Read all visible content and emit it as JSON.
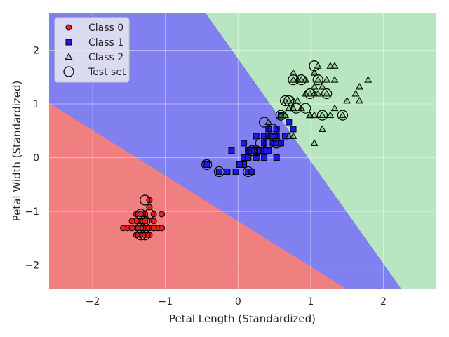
{
  "chart_data": {
    "type": "scatter",
    "title": "",
    "xlabel": "Petal Length (Standardized)",
    "ylabel": "Petal Width (Standardized)",
    "xlim": [
      -2.6,
      2.72
    ],
    "ylim": [
      -2.45,
      2.7
    ],
    "xticks": [
      -2,
      -1,
      0,
      1,
      2
    ],
    "yticks": [
      -2,
      -1,
      0,
      1,
      2
    ],
    "grid": true,
    "legend_position": "top-left",
    "decision_regions": {
      "class0_color": "#f08080",
      "class1_color": "#8080f0",
      "class2_color": "#b8e6c0",
      "boundary_0_1": [
        [
          -2.6,
          1.02
        ],
        [
          1.5,
          -2.45
        ]
      ],
      "boundary_1_2": [
        [
          -0.45,
          2.7
        ],
        [
          2.25,
          -2.45
        ]
      ]
    },
    "series": [
      {
        "name": "Class 0",
        "marker": "circle",
        "color": "#ee1c1c",
        "points": [
          [
            -1.34,
            -1.31
          ],
          [
            -1.28,
            -1.31
          ],
          [
            -1.4,
            -1.31
          ],
          [
            -1.22,
            -1.31
          ],
          [
            -1.34,
            -1.18
          ],
          [
            -1.16,
            -1.18
          ],
          [
            -1.4,
            -1.18
          ],
          [
            -1.28,
            -1.05
          ],
          [
            -1.34,
            -1.44
          ],
          [
            -1.52,
            -1.31
          ],
          [
            -1.46,
            -1.31
          ],
          [
            -1.16,
            -1.05
          ],
          [
            -1.05,
            -1.05
          ],
          [
            -1.22,
            -0.92
          ],
          [
            -1.28,
            -1.44
          ],
          [
            -1.22,
            -1.44
          ],
          [
            -1.16,
            -1.31
          ],
          [
            -1.1,
            -1.31
          ],
          [
            -1.4,
            -1.05
          ],
          [
            -1.46,
            -1.18
          ],
          [
            -1.58,
            -1.31
          ],
          [
            -1.34,
            -1.05
          ],
          [
            -1.05,
            -1.31
          ],
          [
            -1.22,
            -0.79
          ],
          [
            -1.4,
            -1.44
          ],
          [
            -1.28,
            -1.18
          ],
          [
            -1.16,
            -1.31
          ],
          [
            -1.34,
            -1.31
          ]
        ]
      },
      {
        "name": "Class 1",
        "marker": "square",
        "color": "#1a1aee",
        "points": [
          [
            0.42,
            0.4
          ],
          [
            0.36,
            0.4
          ],
          [
            0.53,
            0.4
          ],
          [
            0.14,
            0.13
          ],
          [
            0.48,
            0.4
          ],
          [
            0.42,
            0.13
          ],
          [
            0.53,
            0.53
          ],
          [
            -0.26,
            -0.26
          ],
          [
            0.42,
            0.13
          ],
          [
            0.08,
            0.27
          ],
          [
            -0.15,
            -0.26
          ],
          [
            0.25,
            0.4
          ],
          [
            0.14,
            -0.26
          ],
          [
            0.53,
            0.27
          ],
          [
            -0.09,
            0.13
          ],
          [
            0.36,
            0.27
          ],
          [
            0.42,
            0.4
          ],
          [
            0.19,
            -0.26
          ],
          [
            0.42,
            0.4
          ],
          [
            0.08,
            -0.13
          ],
          [
            0.59,
            0.79
          ],
          [
            0.14,
            0.13
          ],
          [
            0.65,
            0.4
          ],
          [
            0.53,
            0.0
          ],
          [
            0.31,
            0.13
          ],
          [
            0.36,
            0.27
          ],
          [
            0.59,
            0.27
          ],
          [
            0.7,
            0.66
          ],
          [
            0.42,
            0.4
          ],
          [
            -0.15,
            -0.26
          ],
          [
            0.02,
            -0.13
          ],
          [
            -0.03,
            -0.26
          ],
          [
            0.08,
            0.0
          ],
          [
            0.76,
            0.53
          ],
          [
            0.42,
            0.4
          ],
          [
            0.42,
            0.53
          ],
          [
            0.48,
            0.4
          ],
          [
            0.36,
            0.13
          ],
          [
            0.19,
            0.13
          ],
          [
            0.14,
            0.13
          ],
          [
            0.36,
            0.0
          ],
          [
            0.48,
            0.27
          ],
          [
            0.14,
            0.0
          ],
          [
            -0.26,
            -0.26
          ],
          [
            0.25,
            0.13
          ],
          [
            0.25,
            0.0
          ],
          [
            0.25,
            0.13
          ],
          [
            0.31,
            0.13
          ],
          [
            -0.43,
            -0.13
          ],
          [
            0.19,
            0.13
          ]
        ]
      },
      {
        "name": "Class 2",
        "marker": "triangle",
        "color": "#28b428",
        "points": [
          [
            1.27,
            1.71
          ],
          [
            0.76,
            0.92
          ],
          [
            1.22,
            1.19
          ],
          [
            1.05,
            0.79
          ],
          [
            1.16,
            1.32
          ],
          [
            1.62,
            1.19
          ],
          [
            0.42,
            0.66
          ],
          [
            1.44,
            0.79
          ],
          [
            1.16,
            0.79
          ],
          [
            1.33,
            1.71
          ],
          [
            0.76,
            1.06
          ],
          [
            0.87,
            0.92
          ],
          [
            0.99,
            1.19
          ],
          [
            0.7,
            1.06
          ],
          [
            0.76,
            1.58
          ],
          [
            0.87,
            1.45
          ],
          [
            0.99,
            0.79
          ],
          [
            1.67,
            1.32
          ],
          [
            1.79,
            1.45
          ],
          [
            0.7,
            0.4
          ],
          [
            1.1,
            1.45
          ],
          [
            0.65,
            1.06
          ],
          [
            1.67,
            1.06
          ],
          [
            0.65,
            0.79
          ],
          [
            1.1,
            1.19
          ],
          [
            1.27,
            0.79
          ],
          [
            0.59,
            0.79
          ],
          [
            0.65,
            0.79
          ],
          [
            1.05,
            1.19
          ],
          [
            1.16,
            0.53
          ],
          [
            1.33,
            0.92
          ],
          [
            1.5,
            1.06
          ],
          [
            1.05,
            1.32
          ],
          [
            0.76,
            0.4
          ],
          [
            1.05,
            0.27
          ],
          [
            1.33,
            1.45
          ],
          [
            1.05,
            1.58
          ],
          [
            0.99,
            0.79
          ],
          [
            0.59,
            0.79
          ],
          [
            0.93,
            1.19
          ],
          [
            1.05,
            1.58
          ],
          [
            0.76,
            1.45
          ],
          [
            0.76,
            0.92
          ],
          [
            1.22,
            1.45
          ],
          [
            1.1,
            1.71
          ],
          [
            0.82,
            1.45
          ],
          [
            0.7,
            0.92
          ],
          [
            0.82,
            1.06
          ],
          [
            0.93,
            1.45
          ],
          [
            0.99,
            0.79
          ]
        ]
      },
      {
        "name": "Test set",
        "marker": "open-circle",
        "color": "#000000",
        "points": [
          [
            -1.34,
            -1.05
          ],
          [
            -1.22,
            -1.05
          ],
          [
            -1.28,
            -1.31
          ],
          [
            -1.34,
            -1.44
          ],
          [
            -1.28,
            -0.79
          ],
          [
            -1.28,
            -1.44
          ],
          [
            -1.34,
            -1.31
          ],
          [
            -1.28,
            -1.18
          ],
          [
            0.19,
            0.13
          ],
          [
            0.31,
            0.27
          ],
          [
            0.48,
            0.53
          ],
          [
            0.36,
            0.66
          ],
          [
            0.42,
            0.27
          ],
          [
            -0.26,
            -0.26
          ],
          [
            0.14,
            -0.26
          ],
          [
            -0.43,
            -0.13
          ],
          [
            0.25,
            0.13
          ],
          [
            0.53,
            0.27
          ],
          [
            0.48,
            0.4
          ],
          [
            0.59,
            0.79
          ],
          [
            0.65,
            1.06
          ],
          [
            0.76,
            1.45
          ],
          [
            0.87,
            1.45
          ],
          [
            0.99,
            1.19
          ],
          [
            1.05,
            1.71
          ],
          [
            1.1,
            1.45
          ],
          [
            1.22,
            1.19
          ],
          [
            1.16,
            0.79
          ],
          [
            1.44,
            0.79
          ],
          [
            0.93,
            0.92
          ],
          [
            0.7,
            1.06
          ],
          [
            0.8,
            0.92
          ]
        ]
      }
    ]
  }
}
